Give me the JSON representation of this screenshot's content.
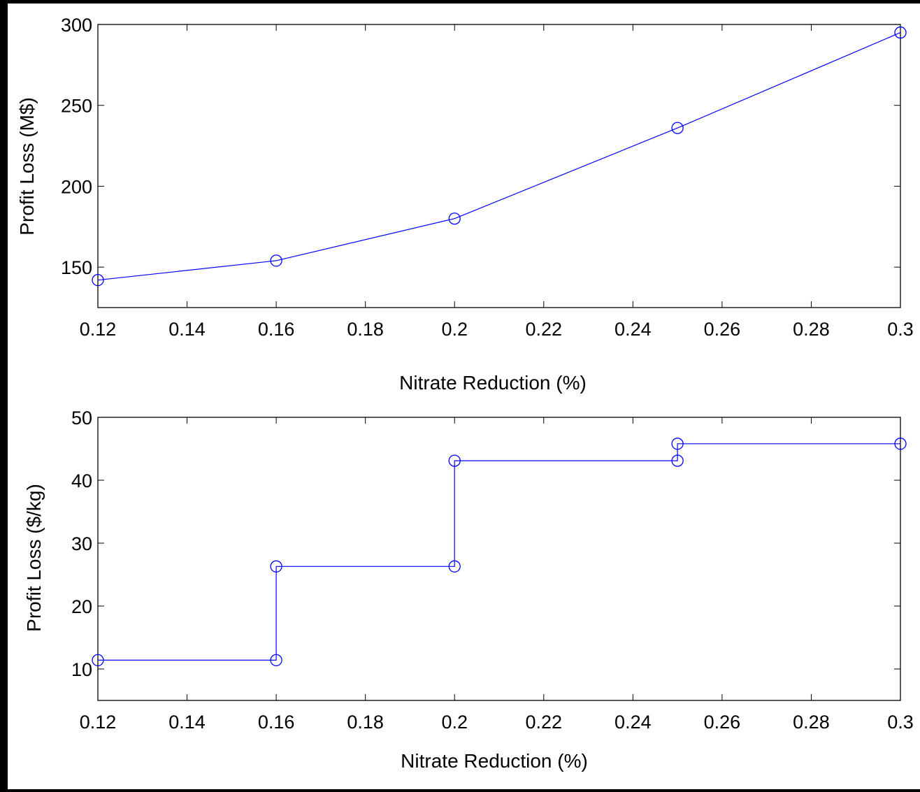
{
  "figure": {
    "background": "#ffffff",
    "frame_color": "#000000"
  },
  "chart_data": [
    {
      "type": "line",
      "title": "",
      "xlabel": "Nitrate Reduction (%)",
      "ylabel": "Profit Loss (M$)",
      "xlim": [
        0.12,
        0.3
      ],
      "ylim": [
        125,
        300
      ],
      "xticks": [
        0.12,
        0.14,
        0.16,
        0.18,
        0.2,
        0.22,
        0.24,
        0.26,
        0.28,
        0.3
      ],
      "xtick_labels": [
        "0.12",
        "0.14",
        "0.16",
        "0.18",
        "0.2",
        "0.22",
        "0.24",
        "0.26",
        "0.28",
        "0.3"
      ],
      "yticks": [
        150,
        200,
        250,
        300
      ],
      "ytick_labels": [
        "150",
        "200",
        "250",
        "300"
      ],
      "grid": false,
      "series": [
        {
          "color": "#0000ff",
          "marker": "circle",
          "x": [
            0.12,
            0.16,
            0.2,
            0.25,
            0.3
          ],
          "y": [
            142,
            154,
            180,
            236,
            295
          ]
        }
      ]
    },
    {
      "type": "line",
      "title": "",
      "xlabel": "Nitrate Reduction (%)",
      "ylabel": "Profit Loss ($/kg)",
      "xlim": [
        0.12,
        0.3
      ],
      "ylim": [
        5,
        50
      ],
      "xticks": [
        0.12,
        0.14,
        0.16,
        0.18,
        0.2,
        0.22,
        0.24,
        0.26,
        0.28,
        0.3
      ],
      "xtick_labels": [
        "0.12",
        "0.14",
        "0.16",
        "0.18",
        "0.2",
        "0.22",
        "0.24",
        "0.26",
        "0.28",
        "0.3"
      ],
      "yticks": [
        10,
        20,
        30,
        40,
        50
      ],
      "ytick_labels": [
        "10",
        "20",
        "30",
        "40",
        "50"
      ],
      "grid": false,
      "series": [
        {
          "color": "#0000ff",
          "marker": "circle",
          "x": [
            0.12,
            0.16,
            0.16,
            0.2,
            0.2,
            0.25,
            0.25,
            0.3
          ],
          "y": [
            11.4,
            11.4,
            26.3,
            26.3,
            43.1,
            43.1,
            45.8,
            45.8
          ]
        }
      ]
    }
  ]
}
